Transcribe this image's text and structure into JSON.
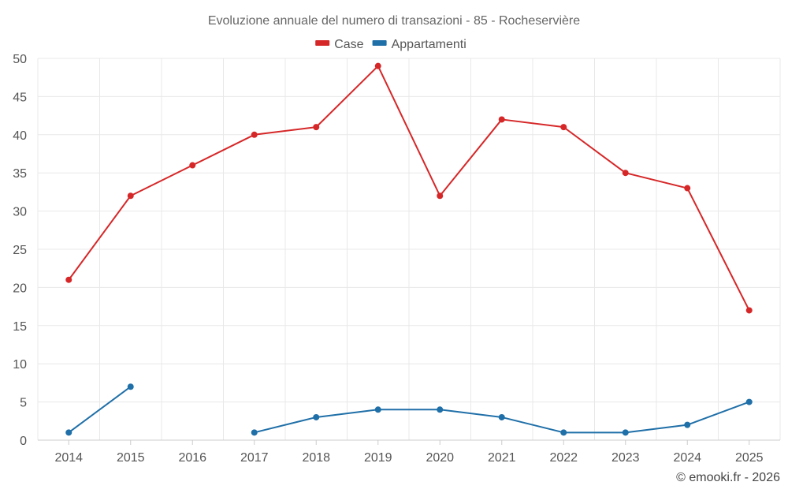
{
  "chart_data": {
    "type": "line",
    "title": "Evoluzione annuale del numero di transazioni - 85 - Rocheservière",
    "categories": [
      "2014",
      "2015",
      "2016",
      "2017",
      "2018",
      "2019",
      "2020",
      "2021",
      "2022",
      "2023",
      "2024",
      "2025"
    ],
    "ylim": [
      0,
      50
    ],
    "yticks": [
      0,
      5,
      10,
      15,
      20,
      25,
      30,
      35,
      40,
      45,
      50
    ],
    "grid": true,
    "legend_position": "top-center",
    "series": [
      {
        "name": "Case",
        "color": "#d62728",
        "values": [
          21,
          32,
          36,
          40,
          41,
          49,
          32,
          42,
          41,
          35,
          33,
          17
        ]
      },
      {
        "name": "Appartamenti",
        "color": "#1f6fa8",
        "values": [
          1,
          7,
          null,
          1,
          3,
          4,
          4,
          3,
          1,
          1,
          2,
          5
        ]
      }
    ]
  },
  "credit": "© emooki.fr - 2026"
}
